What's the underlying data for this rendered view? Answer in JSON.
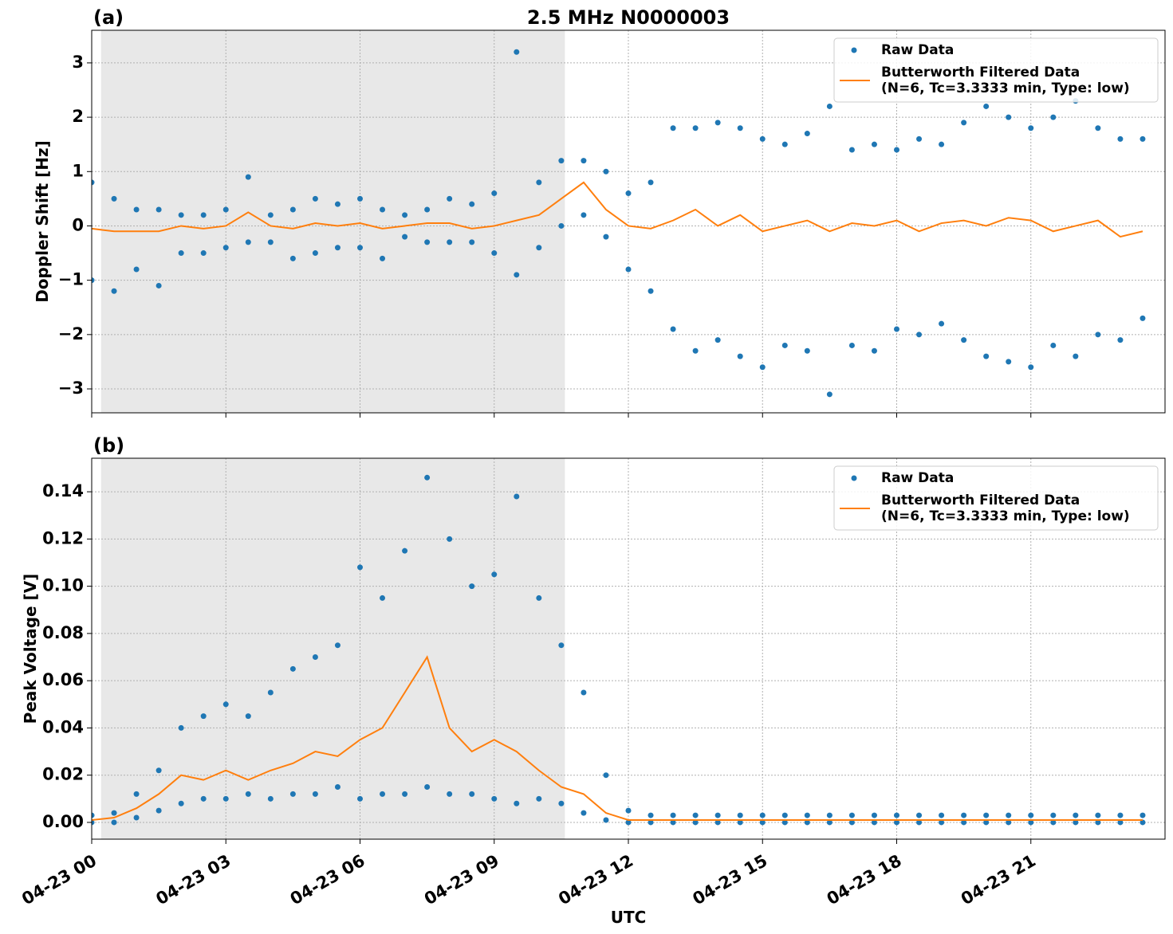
{
  "chart_data": [
    {
      "type": "scatter-line",
      "panel_label": "(a)",
      "title": "2.5 MHz N0000003",
      "ylabel": "Doppler Shift [Hz]",
      "xlim": [
        0,
        24
      ],
      "ylim": [
        -3.44,
        3.6
      ],
      "yticks": [
        {
          "value": -3,
          "label": "−3"
        },
        {
          "value": -2,
          "label": "−2"
        },
        {
          "value": -1,
          "label": "−1"
        },
        0,
        1,
        2,
        3
      ],
      "grid": true,
      "legend": "upper right",
      "shaded_span": [
        0.21,
        10.58
      ],
      "sharex": true,
      "series": [
        {
          "name": "Raw Data",
          "color": "#1f77b4",
          "marker": "dot",
          "x": [
            0,
            0,
            0.5,
            0.5,
            1,
            1,
            1.5,
            1.5,
            2,
            2,
            2.5,
            2.5,
            3,
            3,
            3.5,
            3.5,
            4,
            4,
            4.5,
            4.5,
            5,
            5,
            5.5,
            5.5,
            6,
            6,
            6.5,
            6.5,
            7,
            7,
            7.5,
            7.5,
            8,
            8,
            8.5,
            8.5,
            9,
            9,
            9.5,
            9.5,
            10,
            10,
            10.5,
            10.5,
            11,
            11,
            11.5,
            11.5,
            12,
            12,
            12.5,
            12.5,
            13,
            13,
            13.5,
            13.5,
            14,
            14,
            14.5,
            14.5,
            15,
            15,
            15.5,
            15.5,
            16,
            16,
            16.5,
            16.5,
            17,
            17,
            17.5,
            17.5,
            18,
            18,
            18.5,
            18.5,
            19,
            19,
            19.5,
            19.5,
            20,
            20,
            20.5,
            20.5,
            21,
            21,
            21.5,
            21.5,
            22,
            22,
            22.5,
            22.5,
            23,
            23,
            23.5,
            23.5
          ],
          "values": [
            0.8,
            -1.0,
            0.5,
            -1.2,
            0.3,
            -0.8,
            0.3,
            -1.1,
            0.2,
            -0.5,
            0.2,
            -0.5,
            0.3,
            -0.4,
            0.9,
            -0.3,
            0.2,
            -0.3,
            0.3,
            -0.6,
            0.5,
            -0.5,
            0.4,
            -0.4,
            0.5,
            -0.4,
            0.3,
            -0.6,
            0.2,
            -0.2,
            0.3,
            -0.3,
            0.5,
            -0.3,
            0.4,
            -0.3,
            0.6,
            -0.5,
            3.2,
            -0.9,
            0.8,
            -0.4,
            1.2,
            0.0,
            1.2,
            0.2,
            1.0,
            -0.2,
            0.6,
            -0.8,
            0.8,
            -1.2,
            1.8,
            -1.9,
            1.8,
            -2.3,
            1.9,
            -2.1,
            1.8,
            -2.4,
            1.6,
            -2.6,
            1.5,
            -2.2,
            1.7,
            -2.3,
            2.2,
            -3.1,
            1.4,
            -2.2,
            1.5,
            -2.3,
            1.4,
            -1.9,
            1.6,
            -2.0,
            1.5,
            -1.8,
            1.9,
            -2.1,
            2.2,
            -2.4,
            2.0,
            -2.5,
            1.8,
            -2.6,
            2.0,
            -2.2,
            2.3,
            -2.4,
            1.8,
            -2.0,
            1.6,
            -2.1,
            1.6,
            -1.7
          ]
        },
        {
          "name": "Butterworth Filtered Data\n(N=6, Tc=3.3333 min, Type: low)",
          "color": "#ff7f0e",
          "marker": "line",
          "x": [
            0,
            0.5,
            1,
            1.5,
            2,
            2.5,
            3,
            3.5,
            4,
            4.5,
            5,
            5.5,
            6,
            6.5,
            7,
            7.5,
            8,
            8.5,
            9,
            9.5,
            10,
            10.5,
            11,
            11.5,
            12,
            12.5,
            13,
            13.5,
            14,
            14.5,
            15,
            15.5,
            16,
            16.5,
            17,
            17.5,
            18,
            18.5,
            19,
            19.5,
            20,
            20.5,
            21,
            21.5,
            22,
            22.5,
            23,
            23.5
          ],
          "values": [
            -0.05,
            -0.1,
            -0.1,
            -0.1,
            0.0,
            -0.05,
            0.0,
            0.25,
            0.0,
            -0.05,
            0.05,
            0.0,
            0.05,
            -0.05,
            0.0,
            0.05,
            0.05,
            -0.05,
            0.0,
            0.1,
            0.2,
            0.5,
            0.8,
            0.3,
            0.0,
            -0.05,
            0.1,
            0.3,
            0.0,
            0.2,
            -0.1,
            0.0,
            0.1,
            -0.1,
            0.05,
            0.0,
            0.1,
            -0.1,
            0.05,
            0.1,
            0.0,
            0.15,
            0.1,
            -0.1,
            0.0,
            0.1,
            -0.2,
            -0.1
          ]
        }
      ]
    },
    {
      "type": "scatter-line",
      "panel_label": "(b)",
      "ylabel": "Peak Voltage [V]",
      "xlabel": "UTC",
      "xlim": [
        0,
        24
      ],
      "ylim": [
        -0.0071,
        0.1542
      ],
      "xticks": [
        {
          "value": 0,
          "label": "04-23 00"
        },
        {
          "value": 3,
          "label": "04-23 03"
        },
        {
          "value": 6,
          "label": "04-23 06"
        },
        {
          "value": 9,
          "label": "04-23 09"
        },
        {
          "value": 12,
          "label": "04-23 12"
        },
        {
          "value": 15,
          "label": "04-23 15"
        },
        {
          "value": 18,
          "label": "04-23 18"
        },
        {
          "value": 21,
          "label": "04-23 21"
        }
      ],
      "yticks": [
        {
          "value": 0,
          "label": "0.00"
        },
        {
          "value": 0.02,
          "label": "0.02"
        },
        {
          "value": 0.04,
          "label": "0.04"
        },
        {
          "value": 0.06,
          "label": "0.06"
        },
        {
          "value": 0.08,
          "label": "0.08"
        },
        {
          "value": 0.1,
          "label": "0.10"
        },
        {
          "value": 0.12,
          "label": "0.12"
        },
        {
          "value": 0.14,
          "label": "0.14"
        }
      ],
      "grid": true,
      "legend": "upper right",
      "shaded_span": [
        0.21,
        10.58
      ],
      "series": [
        {
          "name": "Raw Data",
          "color": "#1f77b4",
          "marker": "dot",
          "x": [
            0,
            0,
            0.5,
            0.5,
            1,
            1,
            1.5,
            1.5,
            2,
            2,
            2.5,
            2.5,
            3,
            3,
            3.5,
            3.5,
            4,
            4,
            4.5,
            4.5,
            5,
            5,
            5.5,
            5.5,
            6,
            6,
            6.5,
            6.5,
            7,
            7,
            7.5,
            7.5,
            8,
            8,
            8.5,
            8.5,
            9,
            9,
            9.5,
            9.5,
            10,
            10,
            10.5,
            10.5,
            11,
            11,
            11.5,
            11.5,
            12,
            12,
            12.5,
            12.5,
            13,
            13,
            13.5,
            13.5,
            14,
            14,
            14.5,
            14.5,
            15,
            15,
            15.5,
            15.5,
            16,
            16,
            16.5,
            16.5,
            17,
            17,
            17.5,
            17.5,
            18,
            18,
            18.5,
            18.5,
            19,
            19,
            19.5,
            19.5,
            20,
            20,
            20.5,
            20.5,
            21,
            21,
            21.5,
            21.5,
            22,
            22,
            22.5,
            22.5,
            23,
            23,
            23.5,
            23.5
          ],
          "values": [
            0.003,
            0.0,
            0.004,
            0.0,
            0.012,
            0.002,
            0.022,
            0.005,
            0.04,
            0.008,
            0.045,
            0.01,
            0.05,
            0.01,
            0.045,
            0.012,
            0.055,
            0.01,
            0.065,
            0.012,
            0.07,
            0.012,
            0.075,
            0.015,
            0.108,
            0.01,
            0.095,
            0.012,
            0.115,
            0.012,
            0.146,
            0.015,
            0.12,
            0.012,
            0.1,
            0.012,
            0.105,
            0.01,
            0.138,
            0.008,
            0.095,
            0.01,
            0.075,
            0.008,
            0.055,
            0.004,
            0.02,
            0.001,
            0.005,
            0.0,
            0.003,
            0.0,
            0.003,
            0.0,
            0.003,
            0.0,
            0.003,
            0.0,
            0.003,
            0.0,
            0.003,
            0.0,
            0.003,
            0.0,
            0.003,
            0.0,
            0.003,
            0.0,
            0.003,
            0.0,
            0.003,
            0.0,
            0.003,
            0.0,
            0.003,
            0.0,
            0.003,
            0.0,
            0.003,
            0.0,
            0.003,
            0.0,
            0.003,
            0.0,
            0.003,
            0.0,
            0.003,
            0.0,
            0.003,
            0.0,
            0.003,
            0.0,
            0.003,
            0.0,
            0.003,
            0.0
          ]
        },
        {
          "name": "Butterworth Filtered Data\n(N=6, Tc=3.3333 min, Type: low)",
          "color": "#ff7f0e",
          "marker": "line",
          "x": [
            0,
            0.5,
            1,
            1.5,
            2,
            2.5,
            3,
            3.5,
            4,
            4.5,
            5,
            5.5,
            6,
            6.5,
            7,
            7.5,
            8,
            8.5,
            9,
            9.5,
            10,
            10.5,
            11,
            11.5,
            12,
            12.5,
            13,
            13.5,
            14,
            14.5,
            15,
            15.5,
            16,
            16.5,
            17,
            17.5,
            18,
            18.5,
            19,
            19.5,
            20,
            20.5,
            21,
            21.5,
            22,
            22.5,
            23,
            23.5
          ],
          "values": [
            0.001,
            0.002,
            0.006,
            0.012,
            0.02,
            0.018,
            0.022,
            0.018,
            0.022,
            0.025,
            0.03,
            0.028,
            0.035,
            0.04,
            0.055,
            0.07,
            0.04,
            0.03,
            0.035,
            0.03,
            0.022,
            0.015,
            0.012,
            0.004,
            0.001,
            0.001,
            0.001,
            0.001,
            0.001,
            0.001,
            0.001,
            0.001,
            0.001,
            0.001,
            0.001,
            0.001,
            0.001,
            0.001,
            0.001,
            0.001,
            0.001,
            0.001,
            0.001,
            0.001,
            0.001,
            0.001,
            0.001,
            0.001
          ]
        }
      ]
    }
  ]
}
